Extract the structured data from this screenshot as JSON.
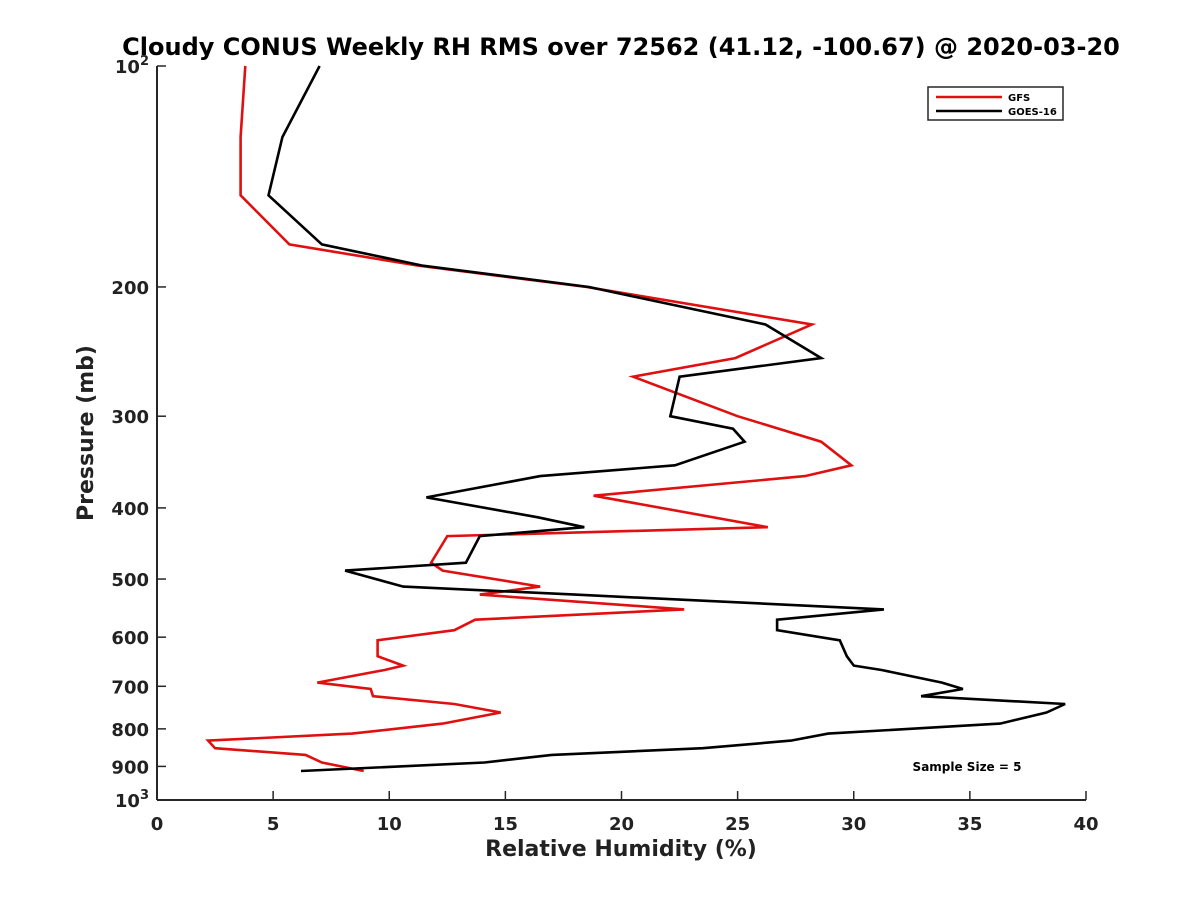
{
  "chart_data": {
    "type": "line",
    "title": "Cloudy CONUS Weekly RH RMS over 72562 (41.12, -100.67) @ 2020-03-20",
    "xlabel": "Relative Humidity (%)",
    "ylabel": "Pressure (mb)",
    "xlim": [
      0,
      40
    ],
    "ylim": [
      100,
      1000
    ],
    "y_scale": "log",
    "y_reversed": true,
    "grid": false,
    "legend_position": "top-right",
    "x_ticks": [
      "0",
      "5",
      "10",
      "15",
      "20",
      "25",
      "30",
      "35",
      "40"
    ],
    "y_ticks": [
      {
        "value": 100,
        "base": "10",
        "exp": "2"
      },
      {
        "value": 200,
        "label": "200"
      },
      {
        "value": 300,
        "label": "300"
      },
      {
        "value": 400,
        "label": "400"
      },
      {
        "value": 500,
        "label": "500"
      },
      {
        "value": 600,
        "label": "600"
      },
      {
        "value": 700,
        "label": "700"
      },
      {
        "value": 800,
        "label": "800"
      },
      {
        "value": 900,
        "label": "900"
      },
      {
        "value": 1000,
        "base": "10",
        "exp": "3"
      }
    ],
    "annotation": "Sample Size = 5",
    "series": [
      {
        "name": "GFS",
        "color": "#e01010",
        "points": [
          [
            3.8,
            100
          ],
          [
            3.6,
            125
          ],
          [
            3.6,
            150
          ],
          [
            5.7,
            175
          ],
          [
            11.2,
            187
          ],
          [
            18.5,
            200
          ],
          [
            28.2,
            225
          ],
          [
            24.9,
            250
          ],
          [
            20.5,
            265
          ],
          [
            25.0,
            300
          ],
          [
            28.6,
            325
          ],
          [
            29.9,
            350
          ],
          [
            27.9,
            362
          ],
          [
            18.8,
            385
          ],
          [
            26.3,
            425
          ],
          [
            12.5,
            437
          ],
          [
            11.8,
            475
          ],
          [
            12.3,
            487
          ],
          [
            16.5,
            512
          ],
          [
            13.9,
            525
          ],
          [
            22.7,
            550
          ],
          [
            13.7,
            568
          ],
          [
            12.8,
            587
          ],
          [
            9.5,
            606
          ],
          [
            9.5,
            637
          ],
          [
            10.6,
            656
          ],
          [
            9.8,
            665
          ],
          [
            6.9,
            692
          ],
          [
            9.2,
            706
          ],
          [
            9.3,
            722
          ],
          [
            12.8,
            740
          ],
          [
            14.8,
            760
          ],
          [
            12.3,
            787
          ],
          [
            8.4,
            812
          ],
          [
            2.2,
            830
          ],
          [
            2.5,
            850
          ],
          [
            6.4,
            868
          ],
          [
            7.1,
            889
          ],
          [
            8.9,
            913
          ]
        ]
      },
      {
        "name": "GOES-16",
        "color": "#000000",
        "points": [
          [
            7.0,
            100
          ],
          [
            5.4,
            125
          ],
          [
            4.8,
            150
          ],
          [
            7.1,
            175
          ],
          [
            11.4,
            187
          ],
          [
            18.6,
            200
          ],
          [
            26.2,
            225
          ],
          [
            28.6,
            250
          ],
          [
            22.5,
            265
          ],
          [
            22.1,
            300
          ],
          [
            24.8,
            312
          ],
          [
            25.3,
            325
          ],
          [
            22.3,
            350
          ],
          [
            16.5,
            362
          ],
          [
            11.6,
            387
          ],
          [
            16.4,
            412
          ],
          [
            18.4,
            425
          ],
          [
            13.9,
            437
          ],
          [
            13.3,
            475
          ],
          [
            8.1,
            487
          ],
          [
            10.6,
            512
          ],
          [
            18.0,
            525
          ],
          [
            31.3,
            550
          ],
          [
            26.7,
            568
          ],
          [
            26.7,
            587
          ],
          [
            29.4,
            606
          ],
          [
            29.7,
            637
          ],
          [
            30.0,
            656
          ],
          [
            31.2,
            665
          ],
          [
            33.8,
            692
          ],
          [
            34.7,
            706
          ],
          [
            32.9,
            722
          ],
          [
            39.1,
            740
          ],
          [
            38.3,
            760
          ],
          [
            36.3,
            787
          ],
          [
            28.9,
            812
          ],
          [
            27.3,
            830
          ],
          [
            23.5,
            850
          ],
          [
            17.0,
            868
          ],
          [
            14.1,
            889
          ],
          [
            6.2,
            913
          ]
        ]
      }
    ]
  }
}
